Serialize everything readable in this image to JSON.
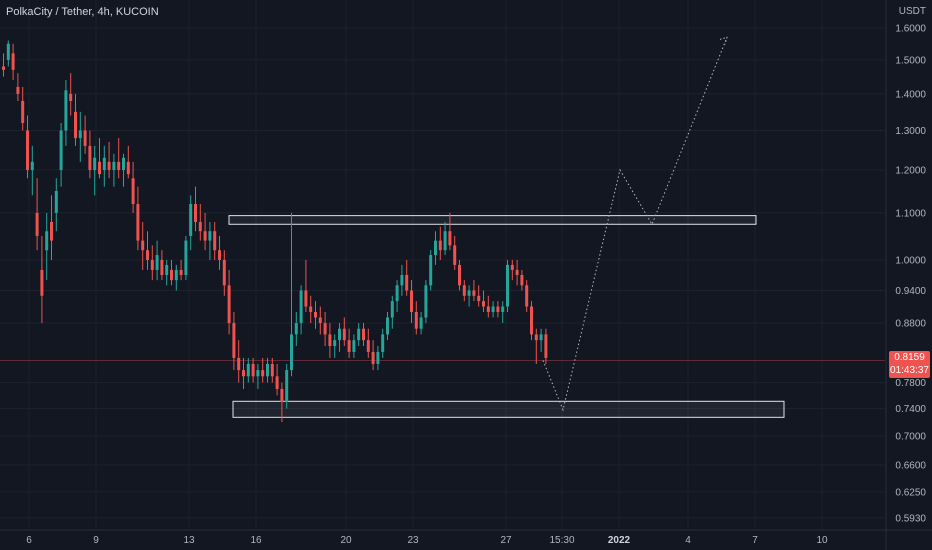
{
  "header": {
    "title": "PolkaCity / Tether, 4h, KUCOIN"
  },
  "price_axis": {
    "unit": "USDT",
    "ticks": [
      "1.6000",
      "1.5000",
      "1.4000",
      "1.3000",
      "1.2000",
      "1.1000",
      "1.0000",
      "0.9400",
      "0.8800",
      "0.7800",
      "0.7400",
      "0.7000",
      "0.6600",
      "0.6250",
      "0.5930"
    ]
  },
  "time_axis": {
    "ticks": [
      "6",
      "9",
      "13",
      "16",
      "20",
      "23",
      "27",
      "15:30",
      "2022",
      "4",
      "7",
      "10"
    ]
  },
  "current_price": {
    "value": "0.8159",
    "countdown": "01:43:37"
  },
  "colors": {
    "background": "#131722",
    "up": "#26a69a",
    "down": "#ef5350",
    "grid": "#1e222d",
    "axis_text": "#b2b5be",
    "zone_border": "#e0e3eb"
  },
  "chart_data": {
    "type": "candlestick",
    "symbol": "PolkaCity / Tether",
    "interval": "4h",
    "exchange": "KUCOIN",
    "scale": "log",
    "ylim": [
      0.59,
      1.65
    ],
    "current_price": 0.8159,
    "resistance_zone": [
      1.075,
      1.094
    ],
    "support_zone": [
      0.727,
      0.751
    ],
    "projection_path": [
      0.8159,
      0.738,
      1.2,
      1.075,
      1.57
    ],
    "candles_ohlc": [
      [
        1.48,
        1.52,
        1.45,
        1.47
      ],
      [
        1.5,
        1.56,
        1.48,
        1.55
      ],
      [
        1.52,
        1.55,
        1.44,
        1.47
      ],
      [
        1.42,
        1.46,
        1.38,
        1.4
      ],
      [
        1.38,
        1.42,
        1.3,
        1.32
      ],
      [
        1.3,
        1.34,
        1.18,
        1.2
      ],
      [
        1.2,
        1.26,
        1.14,
        1.22
      ],
      [
        1.1,
        1.18,
        1.02,
        1.05
      ],
      [
        0.98,
        1.05,
        0.88,
        0.93
      ],
      [
        1.02,
        1.1,
        0.96,
        1.06
      ],
      [
        1.08,
        1.14,
        1.0,
        1.04
      ],
      [
        1.1,
        1.18,
        1.06,
        1.15
      ],
      [
        1.2,
        1.32,
        1.16,
        1.3
      ],
      [
        1.3,
        1.44,
        1.26,
        1.41
      ],
      [
        1.4,
        1.46,
        1.34,
        1.38
      ],
      [
        1.35,
        1.4,
        1.26,
        1.28
      ],
      [
        1.28,
        1.35,
        1.22,
        1.3
      ],
      [
        1.3,
        1.34,
        1.24,
        1.26
      ],
      [
        1.26,
        1.3,
        1.18,
        1.2
      ],
      [
        1.2,
        1.26,
        1.14,
        1.23
      ],
      [
        1.22,
        1.28,
        1.18,
        1.19
      ],
      [
        1.2,
        1.26,
        1.16,
        1.23
      ],
      [
        1.22,
        1.27,
        1.18,
        1.2
      ],
      [
        1.2,
        1.24,
        1.16,
        1.22
      ],
      [
        1.22,
        1.28,
        1.18,
        1.2
      ],
      [
        1.2,
        1.24,
        1.16,
        1.23
      ],
      [
        1.22,
        1.26,
        1.18,
        1.19
      ],
      [
        1.18,
        1.22,
        1.1,
        1.12
      ],
      [
        1.12,
        1.16,
        1.02,
        1.04
      ],
      [
        1.04,
        1.08,
        0.98,
        1.02
      ],
      [
        1.02,
        1.06,
        0.98,
        1.0
      ],
      [
        1.0,
        1.03,
        0.96,
        0.98
      ],
      [
        0.98,
        1.04,
        0.96,
        1.01
      ],
      [
        1.0,
        1.02,
        0.96,
        0.97
      ],
      [
        0.97,
        1.0,
        0.95,
        0.99
      ],
      [
        0.98,
        1.0,
        0.95,
        0.96
      ],
      [
        0.96,
        0.99,
        0.94,
        0.98
      ],
      [
        0.98,
        1.0,
        0.96,
        0.97
      ],
      [
        0.97,
        1.05,
        0.96,
        1.04
      ],
      [
        1.05,
        1.14,
        1.02,
        1.12
      ],
      [
        1.12,
        1.16,
        1.06,
        1.08
      ],
      [
        1.08,
        1.12,
        1.04,
        1.06
      ],
      [
        1.06,
        1.1,
        1.02,
        1.04
      ],
      [
        1.04,
        1.08,
        1.0,
        1.06
      ],
      [
        1.06,
        1.08,
        1.0,
        1.02
      ],
      [
        1.02,
        1.05,
        0.98,
        1.0
      ],
      [
        1.0,
        1.02,
        0.93,
        0.95
      ],
      [
        0.95,
        0.98,
        0.86,
        0.88
      ],
      [
        0.88,
        0.9,
        0.8,
        0.82
      ],
      [
        0.82,
        0.85,
        0.78,
        0.8
      ],
      [
        0.8,
        0.82,
        0.77,
        0.79
      ],
      [
        0.79,
        0.82,
        0.78,
        0.81
      ],
      [
        0.81,
        0.82,
        0.78,
        0.79
      ],
      [
        0.79,
        0.81,
        0.77,
        0.8
      ],
      [
        0.8,
        0.82,
        0.78,
        0.79
      ],
      [
        0.79,
        0.82,
        0.78,
        0.81
      ],
      [
        0.81,
        0.82,
        0.78,
        0.79
      ],
      [
        0.79,
        0.81,
        0.76,
        0.77
      ],
      [
        0.77,
        0.78,
        0.72,
        0.75
      ],
      [
        0.75,
        0.81,
        0.74,
        0.8
      ],
      [
        0.8,
        1.1,
        0.79,
        0.86
      ],
      [
        0.86,
        0.9,
        0.84,
        0.88
      ],
      [
        0.88,
        0.95,
        0.86,
        0.94
      ],
      [
        0.94,
        1.0,
        0.9,
        0.91
      ],
      [
        0.91,
        0.93,
        0.88,
        0.9
      ],
      [
        0.9,
        0.92,
        0.87,
        0.89
      ],
      [
        0.89,
        0.91,
        0.86,
        0.88
      ],
      [
        0.88,
        0.9,
        0.84,
        0.86
      ],
      [
        0.86,
        0.88,
        0.82,
        0.84
      ],
      [
        0.84,
        0.86,
        0.82,
        0.85
      ],
      [
        0.85,
        0.88,
        0.83,
        0.87
      ],
      [
        0.87,
        0.89,
        0.84,
        0.85
      ],
      [
        0.85,
        0.87,
        0.82,
        0.83
      ],
      [
        0.83,
        0.86,
        0.82,
        0.85
      ],
      [
        0.85,
        0.88,
        0.84,
        0.87
      ],
      [
        0.87,
        0.88,
        0.84,
        0.85
      ],
      [
        0.85,
        0.87,
        0.82,
        0.83
      ],
      [
        0.83,
        0.85,
        0.8,
        0.81
      ],
      [
        0.81,
        0.84,
        0.8,
        0.83
      ],
      [
        0.83,
        0.87,
        0.82,
        0.86
      ],
      [
        0.86,
        0.9,
        0.85,
        0.89
      ],
      [
        0.89,
        0.93,
        0.87,
        0.92
      ],
      [
        0.92,
        0.96,
        0.9,
        0.95
      ],
      [
        0.95,
        0.99,
        0.93,
        0.97
      ],
      [
        0.97,
        1.0,
        0.93,
        0.94
      ],
      [
        0.94,
        0.96,
        0.88,
        0.9
      ],
      [
        0.9,
        0.92,
        0.86,
        0.87
      ],
      [
        0.87,
        0.9,
        0.86,
        0.89
      ],
      [
        0.89,
        0.96,
        0.88,
        0.95
      ],
      [
        0.95,
        1.02,
        0.94,
        1.01
      ],
      [
        1.01,
        1.06,
        0.99,
        1.04
      ],
      [
        1.04,
        1.07,
        1.0,
        1.02
      ],
      [
        1.02,
        1.08,
        1.01,
        1.06
      ],
      [
        1.06,
        1.1,
        1.02,
        1.03
      ],
      [
        1.03,
        1.05,
        0.98,
        0.99
      ],
      [
        0.99,
        1.0,
        0.94,
        0.95
      ],
      [
        0.95,
        0.96,
        0.92,
        0.93
      ],
      [
        0.93,
        0.95,
        0.91,
        0.94
      ],
      [
        0.94,
        0.96,
        0.92,
        0.93
      ],
      [
        0.93,
        0.95,
        0.91,
        0.92
      ],
      [
        0.92,
        0.94,
        0.9,
        0.91
      ],
      [
        0.91,
        0.93,
        0.89,
        0.9
      ],
      [
        0.9,
        0.92,
        0.89,
        0.91
      ],
      [
        0.91,
        0.92,
        0.89,
        0.9
      ],
      [
        0.9,
        0.92,
        0.88,
        0.91
      ],
      [
        0.91,
        1.0,
        0.9,
        0.99
      ],
      [
        0.99,
        1.0,
        0.96,
        0.98
      ],
      [
        0.98,
        1.0,
        0.95,
        0.97
      ],
      [
        0.97,
        0.98,
        0.94,
        0.95
      ],
      [
        0.95,
        0.96,
        0.9,
        0.91
      ],
      [
        0.91,
        0.92,
        0.85,
        0.86
      ],
      [
        0.86,
        0.87,
        0.81,
        0.85
      ],
      [
        0.85,
        0.87,
        0.83,
        0.86
      ],
      [
        0.86,
        0.87,
        0.81,
        0.82
      ]
    ]
  }
}
